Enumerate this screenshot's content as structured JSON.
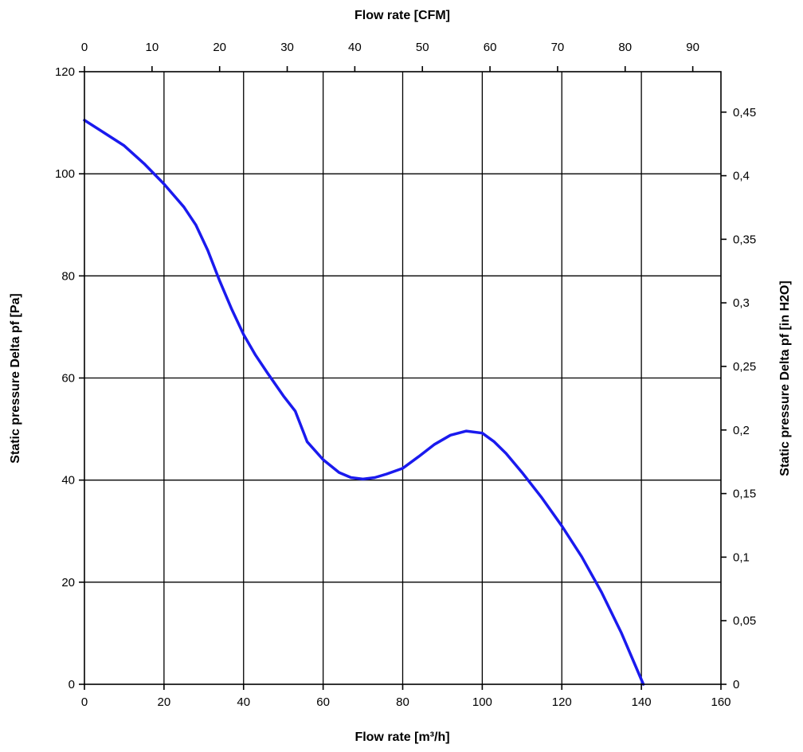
{
  "chart_data": {
    "type": "line",
    "title": "",
    "xlabel": "Flow rate [m³/h]",
    "x2label": "Flow rate [CFM]",
    "ylabel": "Static pressure Delta pf [Pa]",
    "y2label": "Static pressure Delta pf [in H2O]",
    "xlim": [
      0,
      160
    ],
    "ylim": [
      0,
      120
    ],
    "x2lim": [
      0,
      94.17
    ],
    "y2lim": [
      0,
      0.4818
    ],
    "x_ticks": [
      "0",
      "20",
      "40",
      "60",
      "80",
      "100",
      "120",
      "140",
      "160"
    ],
    "y_ticks": [
      "0",
      "20",
      "40",
      "60",
      "80",
      "100",
      "120"
    ],
    "x2_ticks": [
      "0",
      "10",
      "20",
      "30",
      "40",
      "50",
      "60",
      "70",
      "80",
      "90"
    ],
    "y2_ticks": [
      "0",
      "0,05",
      "0,1",
      "0,15",
      "0,2",
      "0,25",
      "0,3",
      "0,35",
      "0,4",
      "0,45"
    ],
    "grid": true,
    "legend": "none",
    "colors": {
      "series": "#1a1aee",
      "grid": "#000000"
    },
    "series": [
      {
        "x": [
          0,
          5,
          10,
          15,
          20,
          25,
          28,
          31,
          34,
          37,
          40,
          43,
          46,
          50,
          53,
          56,
          60,
          64,
          67,
          70,
          73,
          76,
          80,
          84,
          88,
          92,
          96,
          100,
          103,
          106,
          110,
          115,
          120,
          125,
          130,
          135,
          140.5
        ],
        "y": [
          110.5,
          108,
          105.5,
          102,
          98,
          93.5,
          90,
          85,
          79,
          73.5,
          68.5,
          64.5,
          61,
          56.5,
          53.5,
          47.5,
          44,
          41.5,
          40.5,
          40.2,
          40.5,
          41.2,
          42.3,
          44.6,
          47,
          48.8,
          49.6,
          49.2,
          47.5,
          45.2,
          41.5,
          36.5,
          31,
          25,
          18,
          10,
          0
        ]
      }
    ]
  }
}
